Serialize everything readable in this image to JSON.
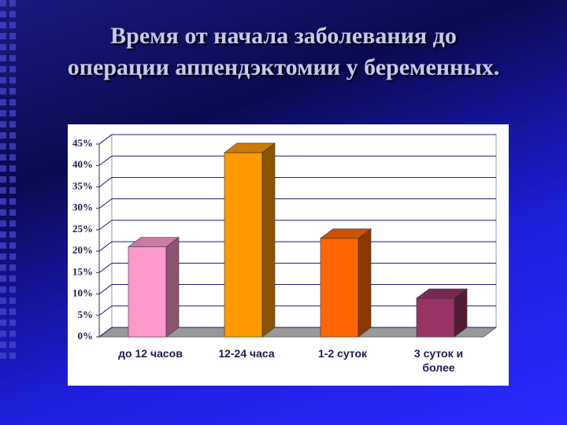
{
  "chart_data": {
    "type": "bar3d",
    "title": "Время от начала заболевания до\nоперации аппендэктомии у беременных.",
    "categories": [
      "до 12 часов",
      "12-24 часа",
      "1-2 суток",
      "3 суток и более"
    ],
    "values": [
      21,
      43,
      23,
      9
    ],
    "colors": [
      "#ff99cc",
      "#ff9900",
      "#ff6600",
      "#993366"
    ],
    "ylim": [
      0,
      45
    ],
    "yticks": [
      {
        "value": 0,
        "label": "0%"
      },
      {
        "value": 5,
        "label": "5%"
      },
      {
        "value": 10,
        "label": "10%"
      },
      {
        "value": 15,
        "label": "15%"
      },
      {
        "value": 20,
        "label": "20%"
      },
      {
        "value": 25,
        "label": "25%"
      },
      {
        "value": 30,
        "label": "30%"
      },
      {
        "value": 35,
        "label": "35%"
      },
      {
        "value": 40,
        "label": "40%"
      },
      {
        "value": 45,
        "label": "45%"
      }
    ],
    "grid": true
  }
}
